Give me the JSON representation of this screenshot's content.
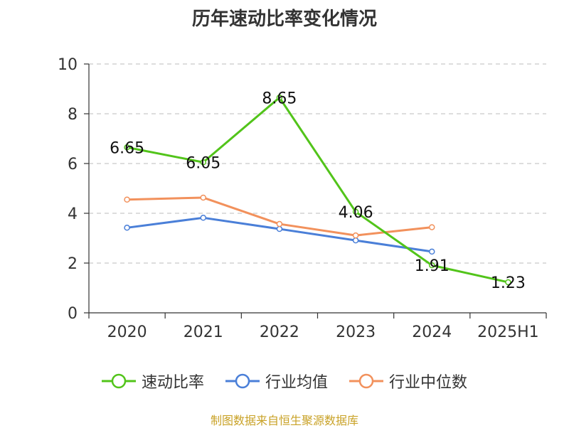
{
  "chart_data": {
    "type": "line",
    "title": "历年速动比率变化情况",
    "categories": [
      "2020",
      "2021",
      "2022",
      "2023",
      "2024",
      "2025H1"
    ],
    "ylim": [
      0,
      10
    ],
    "yticks": [
      "0",
      "2",
      "4",
      "6",
      "8",
      "10"
    ],
    "grid": true,
    "legend_position": "bottom",
    "series": [
      {
        "name": "速动比率",
        "color": "#52c41a",
        "values": [
          6.65,
          6.05,
          8.65,
          4.06,
          1.91,
          1.23
        ],
        "labels": [
          "6.65",
          "6.05",
          "8.65",
          "4.06",
          "1.91",
          "1.23"
        ],
        "show_labels": true
      },
      {
        "name": "行业均值",
        "color": "#4a7fd8",
        "values": [
          3.42,
          3.82,
          3.37,
          2.91,
          2.46,
          null
        ],
        "show_labels": false
      },
      {
        "name": "行业中位数",
        "color": "#f2915c",
        "values": [
          4.55,
          4.63,
          3.57,
          3.11,
          3.44,
          null
        ],
        "show_labels": false
      }
    ]
  },
  "footer": {
    "source": "制图数据来自恒生聚源数据库"
  }
}
